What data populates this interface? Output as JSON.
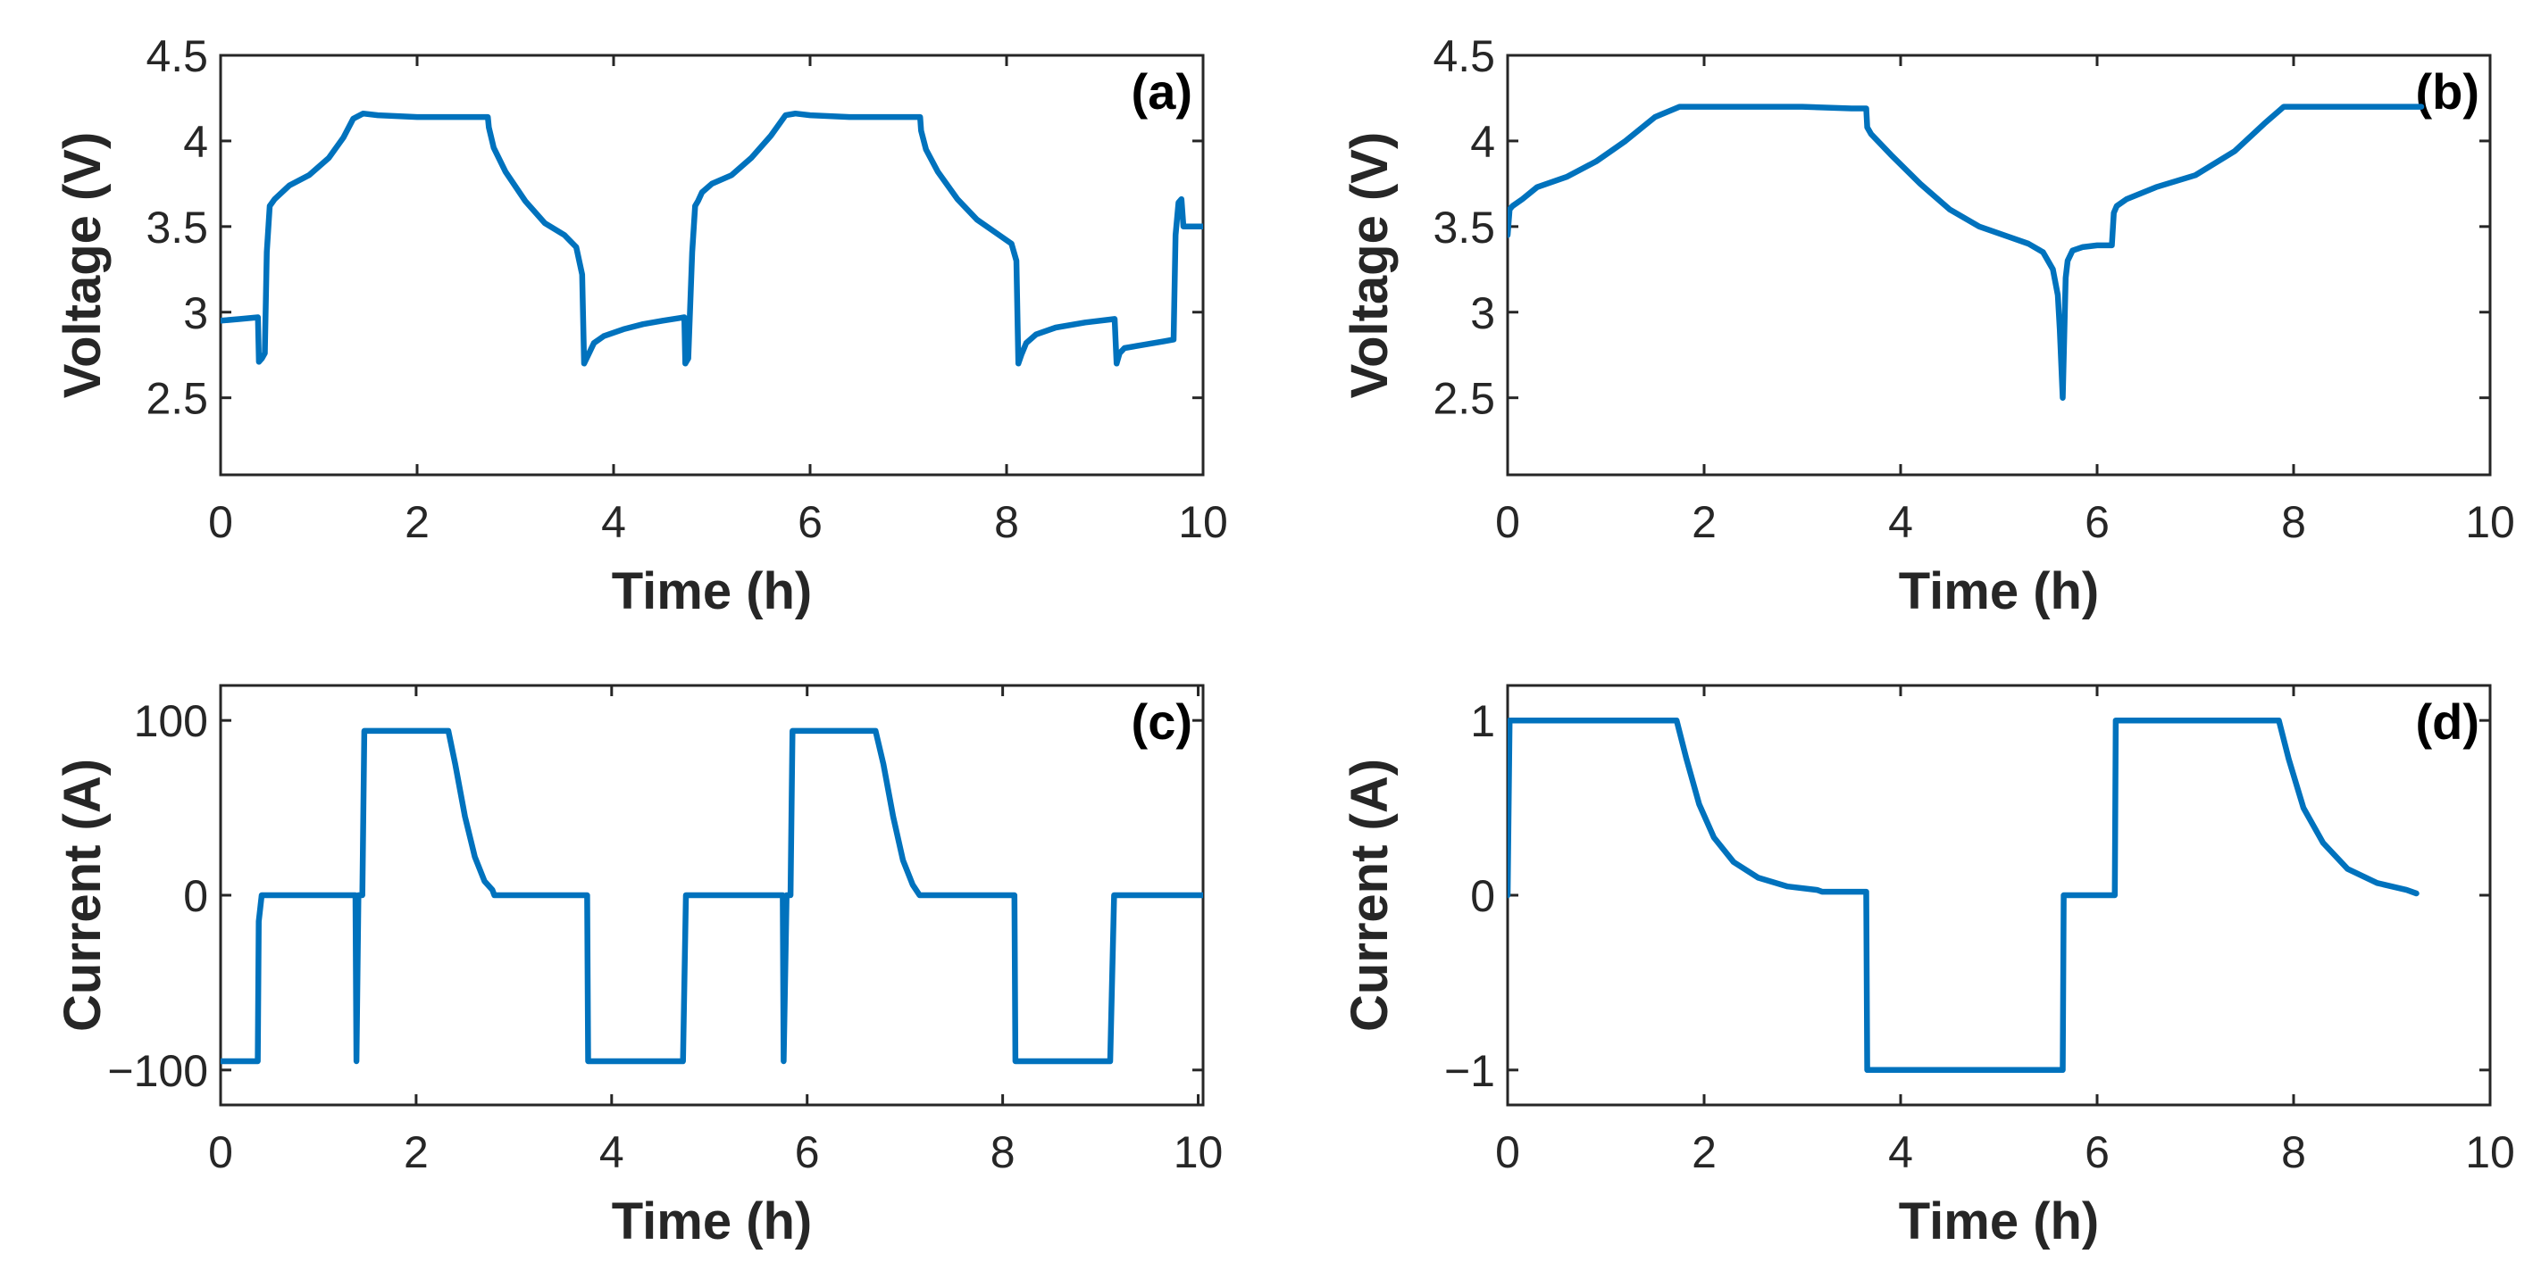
{
  "chart_data": [
    {
      "type": "line",
      "panel": "(a)",
      "xlabel": "Time (h)",
      "ylabel": "Voltage (V)",
      "xlim": [
        0,
        10
      ],
      "ylim": [
        2.05,
        4.5
      ],
      "xticks": [
        0,
        2,
        4,
        6,
        8,
        10
      ],
      "xtick_labels": [
        "0",
        "2",
        "4",
        "6",
        "8",
        "10"
      ],
      "yticks": [
        2.5,
        3,
        3.5,
        4,
        4.5
      ],
      "ytick_labels": [
        "2.5",
        "3",
        "3.5",
        "4",
        "4.5"
      ],
      "color": "#0072BD",
      "series": [
        {
          "name": "Voltage",
          "x": [
            0,
            0.2,
            0.38,
            0.39,
            0.42,
            0.45,
            0.47,
            0.5,
            0.55,
            0.7,
            0.9,
            1.1,
            1.25,
            1.35,
            1.45,
            1.6,
            2.0,
            2.4,
            2.72,
            2.73,
            2.78,
            2.9,
            3.1,
            3.3,
            3.5,
            3.62,
            3.68,
            3.7,
            3.75,
            3.8,
            3.9,
            4.1,
            4.3,
            4.5,
            4.72,
            4.73,
            4.76,
            4.8,
            4.83,
            4.86,
            4.9,
            5.0,
            5.2,
            5.4,
            5.6,
            5.75,
            5.85,
            6.0,
            6.4,
            6.8,
            7.12,
            7.13,
            7.18,
            7.3,
            7.5,
            7.7,
            7.9,
            8.05,
            8.1,
            8.12,
            8.15,
            8.2,
            8.3,
            8.5,
            8.8,
            9.1,
            9.12,
            9.15,
            9.2,
            9.4,
            9.6,
            9.7,
            9.72,
            9.75,
            9.78,
            9.8,
            9.85,
            10.0
          ],
          "y": [
            2.95,
            2.96,
            2.97,
            2.71,
            2.73,
            2.76,
            3.35,
            3.62,
            3.66,
            3.74,
            3.8,
            3.9,
            4.02,
            4.13,
            4.16,
            4.15,
            4.14,
            4.14,
            4.14,
            4.08,
            3.96,
            3.82,
            3.65,
            3.52,
            3.45,
            3.38,
            3.22,
            2.7,
            2.76,
            2.82,
            2.86,
            2.9,
            2.93,
            2.95,
            2.97,
            2.7,
            2.73,
            3.35,
            3.62,
            3.65,
            3.7,
            3.75,
            3.8,
            3.9,
            4.03,
            4.15,
            4.16,
            4.15,
            4.14,
            4.14,
            4.14,
            4.06,
            3.95,
            3.82,
            3.66,
            3.54,
            3.46,
            3.4,
            3.3,
            2.7,
            2.75,
            2.82,
            2.87,
            2.91,
            2.94,
            2.96,
            2.7,
            2.76,
            2.79,
            2.81,
            2.83,
            2.84,
            3.45,
            3.64,
            3.66,
            3.5,
            3.5,
            3.5
          ]
        }
      ]
    },
    {
      "type": "line",
      "panel": "(b)",
      "xlabel": "Time (h)",
      "ylabel": "Voltage (V)",
      "xlim": [
        0,
        10
      ],
      "ylim": [
        2.05,
        4.5
      ],
      "xticks": [
        0,
        2,
        4,
        6,
        8,
        10
      ],
      "xtick_labels": [
        "0",
        "2",
        "4",
        "6",
        "8",
        "10"
      ],
      "yticks": [
        2.5,
        3,
        3.5,
        4,
        4.5
      ],
      "ytick_labels": [
        "2.5",
        "3",
        "3.5",
        "4",
        "4.5"
      ],
      "color": "#0072BD",
      "series": [
        {
          "name": "Voltage",
          "x": [
            0,
            0.02,
            0.05,
            0.15,
            0.3,
            0.6,
            0.9,
            1.2,
            1.5,
            1.75,
            2.0,
            2.5,
            3.0,
            3.5,
            3.65,
            3.66,
            3.7,
            3.9,
            4.2,
            4.5,
            4.8,
            5.1,
            5.3,
            5.45,
            5.55,
            5.6,
            5.62,
            5.65,
            5.68,
            5.7,
            5.75,
            5.85,
            6.0,
            6.1,
            6.15,
            6.17,
            6.2,
            6.3,
            6.6,
            7.0,
            7.4,
            7.7,
            7.9,
            8.2,
            8.6,
            9.0,
            9.3
          ],
          "y": [
            3.45,
            3.6,
            3.62,
            3.66,
            3.73,
            3.79,
            3.88,
            4.0,
            4.14,
            4.2,
            4.2,
            4.2,
            4.2,
            4.19,
            4.19,
            4.08,
            4.04,
            3.92,
            3.75,
            3.6,
            3.5,
            3.44,
            3.4,
            3.35,
            3.25,
            3.1,
            2.9,
            2.5,
            3.2,
            3.3,
            3.36,
            3.38,
            3.39,
            3.39,
            3.39,
            3.58,
            3.62,
            3.66,
            3.73,
            3.8,
            3.94,
            4.1,
            4.2,
            4.2,
            4.2,
            4.2,
            4.2
          ]
        }
      ]
    },
    {
      "type": "line",
      "panel": "(c)",
      "xlabel": "Time (h)",
      "ylabel": "Current (A)",
      "xlim": [
        0,
        10.05
      ],
      "ylim": [
        -120,
        120
      ],
      "xticks": [
        0,
        2,
        4,
        6,
        8,
        10
      ],
      "xtick_labels": [
        "0",
        "2",
        "4",
        "6",
        "8",
        "10"
      ],
      "yticks": [
        -100,
        0,
        100
      ],
      "ytick_labels": [
        "−100",
        "0",
        "100"
      ],
      "color": "#0072BD",
      "series": [
        {
          "name": "Current",
          "x": [
            0,
            0.38,
            0.39,
            0.42,
            1.38,
            1.39,
            1.41,
            1.45,
            1.47,
            1.5,
            2.33,
            2.4,
            2.5,
            2.6,
            2.7,
            2.78,
            2.8,
            3.75,
            3.76,
            4.73,
            4.76,
            5.75,
            5.76,
            5.79,
            5.83,
            5.85,
            6.7,
            6.78,
            6.88,
            6.98,
            7.08,
            7.15,
            7.2,
            8.12,
            8.13,
            9.1,
            9.14,
            10.05
          ],
          "y": [
            -95,
            -95,
            -15,
            0,
            0,
            -95,
            0,
            0,
            94,
            94,
            94,
            75,
            45,
            22,
            8,
            3,
            0,
            0,
            -95,
            -95,
            0,
            0,
            -95,
            0,
            0,
            94,
            94,
            75,
            45,
            20,
            6,
            0,
            0,
            0,
            -95,
            -95,
            0,
            0
          ]
        }
      ]
    },
    {
      "type": "line",
      "panel": "(d)",
      "xlabel": "Time (h)",
      "ylabel": "Current (A)",
      "xlim": [
        0,
        10
      ],
      "ylim": [
        -1.2,
        1.2
      ],
      "xticks": [
        0,
        2,
        4,
        6,
        8,
        10
      ],
      "xtick_labels": [
        "0",
        "2",
        "4",
        "6",
        "8",
        "10"
      ],
      "yticks": [
        -1,
        0,
        1
      ],
      "ytick_labels": [
        "−1",
        "0",
        "1"
      ],
      "color": "#0072BD",
      "series": [
        {
          "name": "Current",
          "x": [
            0,
            0.02,
            1.72,
            1.82,
            1.95,
            2.1,
            2.3,
            2.55,
            2.85,
            3.15,
            3.2,
            3.65,
            3.66,
            5.65,
            5.66,
            6.18,
            6.19,
            7.85,
            7.95,
            8.1,
            8.3,
            8.55,
            8.85,
            9.15,
            9.25
          ],
          "y": [
            0,
            1,
            1,
            0.78,
            0.52,
            0.33,
            0.19,
            0.1,
            0.05,
            0.03,
            0.02,
            0.02,
            -1,
            -1,
            0,
            0,
            1,
            1,
            0.78,
            0.5,
            0.3,
            0.15,
            0.07,
            0.03,
            0.01
          ]
        }
      ]
    }
  ]
}
